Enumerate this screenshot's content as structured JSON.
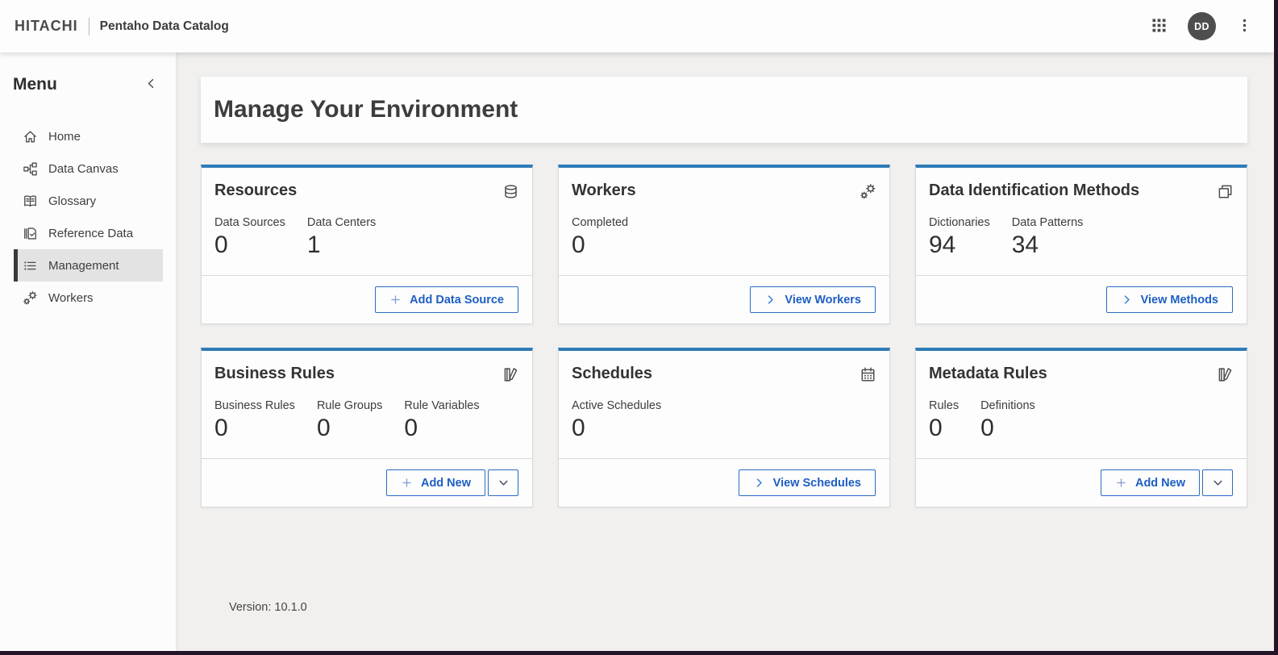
{
  "topbar": {
    "brand": "HITACHI",
    "product": "Pentaho Data Catalog",
    "avatar_initials": "DD",
    "icons": [
      "apps-grid-icon",
      "kebab-menu-icon"
    ]
  },
  "sidebar": {
    "title": "Menu",
    "collapse_icon": "chevron-left-icon",
    "items": [
      {
        "label": "Home",
        "icon": "home-icon",
        "active": false
      },
      {
        "label": "Data Canvas",
        "icon": "data-canvas-icon",
        "active": false
      },
      {
        "label": "Glossary",
        "icon": "glossary-icon",
        "active": false
      },
      {
        "label": "Reference Data",
        "icon": "reference-data-icon",
        "active": false
      },
      {
        "label": "Management",
        "icon": "management-icon",
        "active": true
      },
      {
        "label": "Workers",
        "icon": "gears-icon",
        "active": false
      }
    ]
  },
  "main": {
    "title": "Manage Your Environment",
    "cards": [
      {
        "title": "Resources",
        "icon": "database-stack-icon",
        "stats": [
          {
            "label": "Data Sources",
            "value": "0"
          },
          {
            "label": "Data Centers",
            "value": "1"
          }
        ],
        "actions": [
          {
            "name": "add-data-source-button",
            "label": "Add Data Source",
            "icon": "plus-icon",
            "variant": "add"
          }
        ]
      },
      {
        "title": "Workers",
        "icon": "gears-icon",
        "stats": [
          {
            "label": "Completed",
            "value": "0"
          }
        ],
        "actions": [
          {
            "name": "view-workers-button",
            "label": "View Workers",
            "icon": "chevron-right-icon",
            "variant": "view"
          }
        ]
      },
      {
        "title": "Data Identification Methods",
        "icon": "copies-icon",
        "stats": [
          {
            "label": "Dictionaries",
            "value": "94"
          },
          {
            "label": "Data Patterns",
            "value": "34"
          }
        ],
        "actions": [
          {
            "name": "view-methods-button",
            "label": "View Methods",
            "icon": "chevron-right-icon",
            "variant": "view"
          }
        ]
      },
      {
        "title": "Business Rules",
        "icon": "book-pencil-icon",
        "stats": [
          {
            "label": "Business Rules",
            "value": "0"
          },
          {
            "label": "Rule Groups",
            "value": "0"
          },
          {
            "label": "Rule Variables",
            "value": "0"
          }
        ],
        "actions": [
          {
            "name": "add-new-button",
            "label": "Add New",
            "icon": "plus-icon",
            "variant": "add"
          },
          {
            "name": "add-new-dropdown-toggle",
            "label": "",
            "icon": "chevron-down-icon",
            "variant": "dropdown"
          }
        ]
      },
      {
        "title": "Schedules",
        "icon": "calendar-icon",
        "stats": [
          {
            "label": "Active Schedules",
            "value": "0"
          }
        ],
        "actions": [
          {
            "name": "view-schedules-button",
            "label": "View Schedules",
            "icon": "chevron-right-icon",
            "variant": "view"
          }
        ]
      },
      {
        "title": "Metadata Rules",
        "icon": "book-pencil-icon",
        "stats": [
          {
            "label": "Rules",
            "value": "0"
          },
          {
            "label": "Definitions",
            "value": "0"
          }
        ],
        "actions": [
          {
            "name": "add-new-button",
            "label": "Add New",
            "icon": "plus-icon",
            "variant": "add"
          },
          {
            "name": "add-new-dropdown-toggle",
            "label": "",
            "icon": "chevron-down-icon",
            "variant": "dropdown"
          }
        ]
      }
    ],
    "footer": {
      "version_icon": "info-icon",
      "version_text": "Version: 10.1.0"
    }
  },
  "colors": {
    "card_accent": "#2e7cb8",
    "button_blue": "#1d5fc2",
    "button_border": "#2b6cc3",
    "plus_icon_blue": "#7f9cd4",
    "chevron_blue": "#2d79dd",
    "avatar_bg": "#4e4e4e",
    "active_item_bg": "#e3e3e3",
    "active_item_bar": "#3a3a3a",
    "content_bg": "#f1f0ef",
    "surface": "#fdfdfd",
    "frame_border": "#241427"
  }
}
